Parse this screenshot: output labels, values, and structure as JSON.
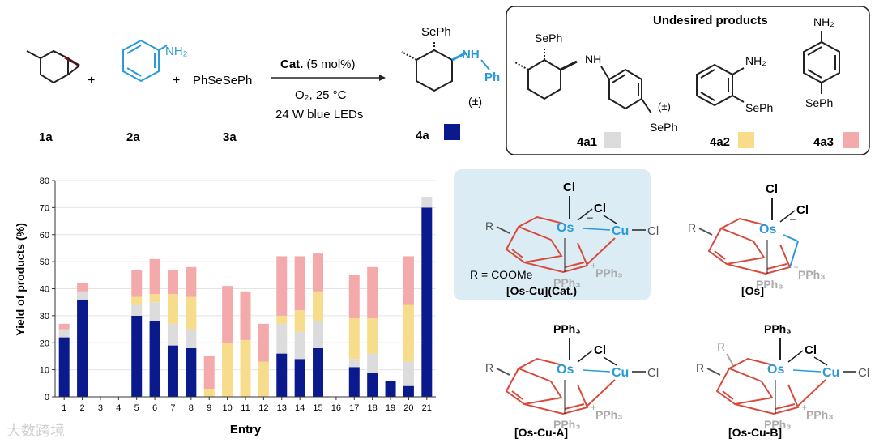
{
  "reaction": {
    "reagent1": "1a",
    "reagent2": "2a",
    "reagent3_formula": "PhSeSePh",
    "reagent3": "3a",
    "plus": "+",
    "cat_label": "Cat.",
    "cat_loading": " (5 mol%)",
    "conditions_line1": "O₂,  25 °C",
    "conditions_line2": "24 W blue LEDs",
    "product": "4a",
    "product_se": "SePh",
    "product_nh": "NH",
    "product_ph": "Ph",
    "racemic": "(±)",
    "amine": "NH₂"
  },
  "undesired": {
    "title": "Undesired products",
    "p1": "4a1",
    "p2": "4a2",
    "p3": "4a3",
    "p1_se_top": "SePh",
    "p1_nh": "NH",
    "p1_rac": "(±)",
    "p1_se_bottom": "SePh",
    "p2_nh2": "NH₂",
    "p2_se": "SePh",
    "p3_nh2": "NH₂",
    "p3_se": "SePh"
  },
  "colors": {
    "4a": "#0a1a8c",
    "4a1": "#dcdcdc",
    "4a2": "#f7dc8c",
    "4a3": "#f4aaaa",
    "bluegreen": "#2a9ad8",
    "red": "#d84a3c",
    "boxbg": "#dcecf5"
  },
  "chart_data": {
    "type": "bar",
    "stacked": true,
    "xlabel": "Entry",
    "ylabel": "Yield of products (%)",
    "ylim": [
      0,
      80
    ],
    "yticks": [
      0,
      10,
      20,
      30,
      40,
      50,
      60,
      70,
      80
    ],
    "categories": [
      "1",
      "2",
      "3",
      "4",
      "5",
      "6",
      "7",
      "8",
      "9",
      "10",
      "11",
      "12",
      "13",
      "14",
      "15",
      "16",
      "17",
      "18",
      "19",
      "20",
      "21"
    ],
    "series": [
      {
        "key": "4a",
        "values": [
          22,
          36,
          0,
          0,
          30,
          28,
          19,
          18,
          0,
          0,
          0,
          0,
          16,
          14,
          18,
          0,
          11,
          9,
          6,
          4,
          70
        ]
      },
      {
        "key": "4a1",
        "values": [
          3,
          3,
          0,
          0,
          4,
          7,
          8,
          7,
          0,
          0,
          0,
          0,
          11,
          10,
          10,
          0,
          3,
          7,
          0,
          9,
          4
        ]
      },
      {
        "key": "4a2",
        "values": [
          0,
          0,
          0,
          0,
          3,
          3,
          11,
          12,
          3,
          20,
          21,
          13,
          3,
          8,
          11,
          0,
          15,
          13,
          0,
          21,
          0
        ]
      },
      {
        "key": "4a3",
        "values": [
          2,
          3,
          0,
          0,
          10,
          13,
          9,
          11,
          12,
          21,
          18,
          14,
          22,
          20,
          14,
          0,
          16,
          19,
          0,
          18,
          0
        ]
      }
    ]
  },
  "catalysts": {
    "cat_name": "[Os-Cu](Cat.)",
    "os_name": "[Os]",
    "a_name": "[Os-Cu-A]",
    "b_name": "[Os-Cu-B]",
    "r_def": "R = COOMe",
    "Os": "Os",
    "Cu": "Cu",
    "Cl": "Cl",
    "R": "R",
    "PPh3": "PPh₃",
    "minus": "–",
    "plus": "+"
  },
  "watermark": "大数跨境"
}
